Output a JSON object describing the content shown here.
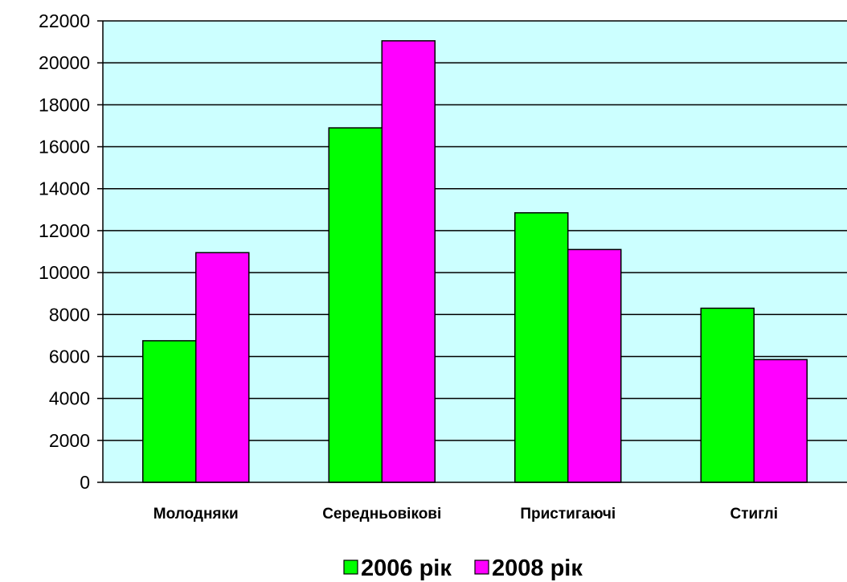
{
  "chart_data": {
    "type": "bar",
    "title": "",
    "xlabel": "",
    "ylabel": "",
    "categories": [
      "Молодняки",
      "Середньовікові",
      "Пристигаючі",
      "Стиглі"
    ],
    "series": [
      {
        "name": "2006 рік",
        "color": "#00ff00",
        "values": [
          6750,
          16900,
          12850,
          8300
        ]
      },
      {
        "name": "2008 рік",
        "color": "#ff00ff",
        "values": [
          10950,
          21050,
          11100,
          5850
        ]
      }
    ],
    "ylim": [
      0,
      22000
    ],
    "yticks": [
      "0",
      "2000",
      "4000",
      "6000",
      "8000",
      "10000",
      "12000",
      "14000",
      "16000",
      "18000",
      "20000",
      "22000"
    ],
    "grid": true,
    "plot_background": "#ccffff",
    "legend_position": "bottom"
  }
}
